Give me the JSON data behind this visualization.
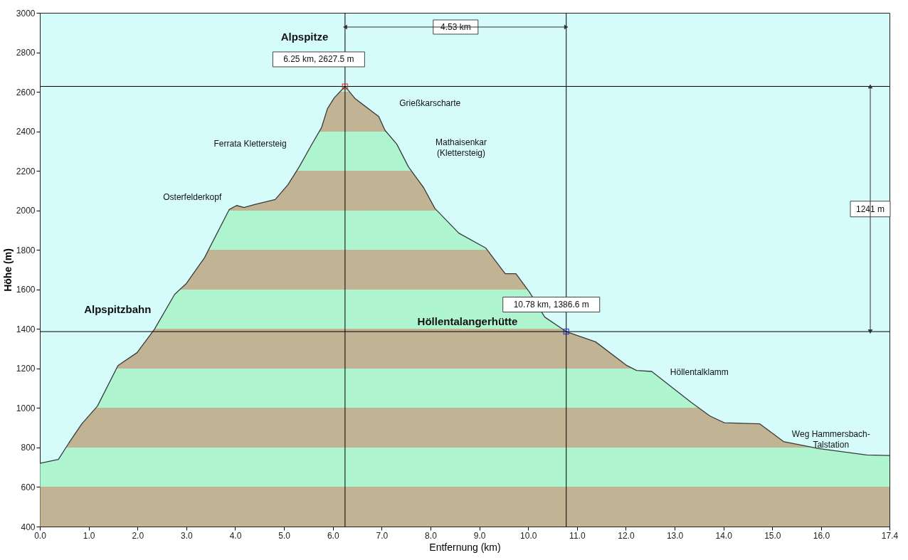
{
  "chart_data": {
    "type": "area",
    "xlabel": "Entfernung  (km)",
    "ylabel": "Höhe (m)",
    "xlim": [
      0,
      17.4
    ],
    "ylim": [
      400,
      3000
    ],
    "xticks": [
      {
        "value": 0,
        "label": "0.0"
      },
      {
        "value": 1,
        "label": "1.0"
      },
      {
        "value": 2,
        "label": "2.0"
      },
      {
        "value": 3,
        "label": "3.0"
      },
      {
        "value": 4,
        "label": "4.0"
      },
      {
        "value": 5,
        "label": "5.0"
      },
      {
        "value": 6,
        "label": "6.0"
      },
      {
        "value": 7,
        "label": "7.0"
      },
      {
        "value": 8,
        "label": "8.0"
      },
      {
        "value": 9,
        "label": "9.0"
      },
      {
        "value": 10,
        "label": "10.0"
      },
      {
        "value": 11,
        "label": "11.0"
      },
      {
        "value": 12,
        "label": "12.0"
      },
      {
        "value": 13,
        "label": "13.0"
      },
      {
        "value": 14,
        "label": "14.0"
      },
      {
        "value": 15,
        "label": "15.0"
      },
      {
        "value": 16,
        "label": "16.0"
      },
      17.4
    ],
    "yticks": [
      400,
      600,
      800,
      1000,
      1200,
      1400,
      1600,
      1800,
      2000,
      2200,
      2400,
      2600,
      2800,
      3000
    ],
    "grid": false,
    "series": [
      {
        "color": "#b89568",
        "x": [
          0,
          0.38,
          0.6,
          0.86,
          1.18,
          1.6,
          1.99,
          2.35,
          2.76,
          3.0,
          3.37,
          3.88,
          4.03,
          4.18,
          4.4,
          4.82,
          5.08,
          5.31,
          5.56,
          5.77,
          5.89,
          6.03,
          6.25,
          6.46,
          6.94,
          7.07,
          7.31,
          7.55,
          7.86,
          8.09,
          8.58,
          9.13,
          9.53,
          9.75,
          10.03,
          10.34,
          10.78,
          11.38,
          12.02,
          12.22,
          12.53,
          13.33,
          13.72,
          14.02,
          14.74,
          15.23,
          15.95,
          16.93,
          17.4
        ],
        "values": [
          720,
          740,
          825,
          920,
          1010,
          1215,
          1280,
          1400,
          1575,
          1630,
          1760,
          2005,
          2025,
          2015,
          2030,
          2055,
          2130,
          2220,
          2330,
          2420,
          2515,
          2570,
          2627.5,
          2565,
          2475,
          2405,
          2335,
          2220,
          2115,
          2010,
          1885,
          1810,
          1680,
          1680,
          1585,
          1460,
          1386.6,
          1335,
          1215,
          1190,
          1185,
          1030,
          960,
          925,
          920,
          830,
          795,
          762,
          760
        ]
      },
      {
        "type": "scatter",
        "marker": "square",
        "colors": [
          "#e02020",
          "#2020d0"
        ],
        "x": [
          6.25,
          10.78
        ],
        "values": [
          2627.5,
          1386.6
        ]
      }
    ],
    "ref_lines": [
      {
        "axis": "x",
        "value": 6.25,
        "color": "#000000"
      },
      {
        "axis": "x",
        "value": 10.78,
        "color": "#000000"
      },
      {
        "axis": "y",
        "value": 2627.5,
        "color": "#000000"
      },
      {
        "axis": "y",
        "value": 1386.6,
        "color": "#000000"
      }
    ],
    "annotations": [
      "Alpspitze",
      {
        "text": "6.25 km, 2627.5 m",
        "x": 6.25,
        "y": 2627.5
      },
      "4.53 km",
      {
        "text": "Grießkarscharte",
        "x": 6.94,
        "y": 2475
      },
      {
        "text": "Ferrata Klettersteig",
        "x": 5.56,
        "y": 2330
      },
      "Mathaisenkar\n(Klettersteig)",
      {
        "text": "Osterfelderkopf",
        "x": 3.88,
        "y": 2005
      },
      "1241 m",
      {
        "text": "Alpspitzbahn",
        "x": 2.35,
        "y": 1400
      },
      {
        "text": "10.78 km, 1386.6 m",
        "x": 10.78,
        "y": 1386.6
      },
      "Höllentalangerhütte",
      {
        "text": "Höllentalklamm",
        "x": 12.53,
        "y": 1185
      },
      {
        "text": "Weg Hammersbach-\nTalstation",
        "x": 16.93,
        "y": 762
      }
    ]
  }
}
